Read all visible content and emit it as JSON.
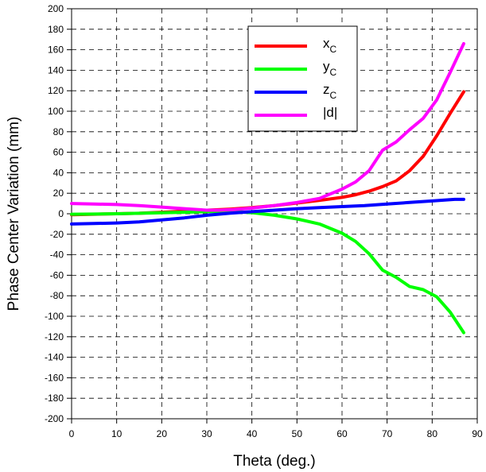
{
  "chart_data": {
    "type": "line",
    "xlabel": "Theta (deg.)",
    "ylabel": "Phase Center Variation (mm)",
    "xlim": [
      0,
      90
    ],
    "ylim": [
      -200,
      200
    ],
    "x_ticks": [
      "0",
      "10",
      "20",
      "30",
      "40",
      "50",
      "60",
      "70",
      "80",
      "90"
    ],
    "y_ticks": [
      "200",
      "180",
      "160",
      "140",
      "120",
      "100",
      "80",
      "60",
      "40",
      "20",
      "0",
      "-20",
      "-40",
      "-60",
      "-80",
      "-100",
      "-120",
      "-140",
      "-160",
      "-180",
      "-200"
    ],
    "grid": true,
    "legend_position": "top-center",
    "series": [
      {
        "name": "xc",
        "label_main": "x",
        "label_sub": "C",
        "color": "#ff0000",
        "x": [
          0,
          5,
          10,
          15,
          20,
          25,
          30,
          35,
          40,
          45,
          50,
          55,
          60,
          63,
          66,
          69,
          72,
          75,
          78,
          81,
          84,
          87
        ],
        "y": [
          -1,
          -0.5,
          0,
          0.5,
          1.5,
          2.5,
          3.5,
          4.5,
          6,
          8,
          10.5,
          13,
          16,
          18.5,
          22,
          26.5,
          32,
          42,
          56,
          76,
          98,
          119
        ]
      },
      {
        "name": "yc",
        "label_main": "y",
        "label_sub": "C",
        "color": "#00ff00",
        "x": [
          0,
          5,
          10,
          15,
          20,
          25,
          30,
          35,
          40,
          45,
          50,
          55,
          60,
          63,
          66,
          69,
          72,
          75,
          78,
          81,
          84,
          87
        ],
        "y": [
          -0.5,
          -0.3,
          0,
          0.5,
          1,
          1.5,
          2,
          2.5,
          1,
          -1.5,
          -5,
          -10,
          -19,
          -27,
          -39,
          -55,
          -62,
          -71,
          -74,
          -81,
          -96,
          -116
        ]
      },
      {
        "name": "zc",
        "label_main": "z",
        "label_sub": "C",
        "color": "#0000ff",
        "x": [
          0,
          5,
          10,
          15,
          20,
          25,
          30,
          35,
          40,
          45,
          50,
          55,
          60,
          65,
          70,
          75,
          80,
          85,
          87
        ],
        "y": [
          -10,
          -9.5,
          -9,
          -8,
          -6,
          -4,
          -1.5,
          0.5,
          2,
          3.5,
          5,
          6,
          7,
          8,
          9.5,
          11,
          12.5,
          14,
          14
        ]
      },
      {
        "name": "|d|",
        "label_main": "|d|",
        "label_sub": "",
        "color": "#ff00ff",
        "x": [
          0,
          5,
          10,
          15,
          20,
          25,
          30,
          33,
          36,
          40,
          45,
          50,
          55,
          60,
          63,
          66,
          69,
          72,
          75,
          78,
          81,
          84,
          87
        ],
        "y": [
          10,
          9.5,
          9,
          8,
          6.5,
          5,
          3.5,
          3.5,
          4,
          5.5,
          8,
          11,
          15,
          24,
          31,
          42,
          62,
          70,
          82,
          93,
          111,
          138,
          166
        ]
      }
    ]
  }
}
